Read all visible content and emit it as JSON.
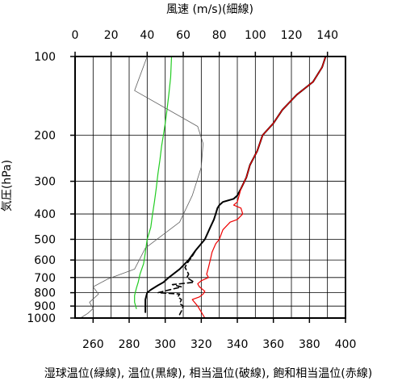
{
  "chart_data": {
    "type": "line",
    "top_axis": {
      "title": "風速 (m/s)(細線)",
      "range": [
        0,
        150
      ],
      "ticks": [
        0,
        20,
        40,
        60,
        80,
        100,
        120,
        140
      ]
    },
    "bottom_axis": {
      "title": "湿球温位(緑線), 温位(黒線), 相当温位(破線), 飽和相当温位(赤線)",
      "range": [
        250,
        400
      ],
      "ticks": [
        260,
        280,
        300,
        320,
        340,
        360,
        380,
        400
      ]
    },
    "y_axis": {
      "title": "気圧(hPa)",
      "scale": "log",
      "inverted": true,
      "range": [
        100,
        1000
      ],
      "ticks": [
        100,
        200,
        300,
        400,
        500,
        600,
        700,
        800,
        900,
        1000
      ]
    },
    "grid": true,
    "series": [
      {
        "key": "wind_speed",
        "axis": "top",
        "color": "#606060",
        "width": 0.8,
        "dash": "",
        "x": [
          40,
          33,
          68,
          71,
          70,
          65,
          58,
          39,
          33,
          18,
          10,
          13,
          8,
          10,
          7,
          3
        ],
        "y": [
          100,
          135,
          185,
          215,
          265,
          340,
          430,
          540,
          650,
          710,
          760,
          810,
          870,
          920,
          960,
          1000
        ]
      },
      {
        "key": "wet_bulb_potential_temperature",
        "axis": "bottom",
        "color": "#22cc22",
        "width": 1.2,
        "dash": "",
        "x": [
          303.5,
          303,
          302,
          301,
          300,
          299,
          298,
          297,
          296,
          295,
          294,
          293,
          292,
          290,
          289,
          288,
          286,
          285,
          284,
          283,
          283,
          284
        ],
        "y": [
          100,
          120,
          140,
          160,
          180,
          200,
          220,
          250,
          280,
          320,
          360,
          400,
          450,
          500,
          560,
          620,
          680,
          730,
          770,
          820,
          870,
          920
        ]
      },
      {
        "key": "potential_temperature",
        "axis": "bottom",
        "color": "#000000",
        "width": 2.0,
        "dash": "",
        "x": [
          389,
          387,
          382,
          373,
          365,
          360,
          354,
          351,
          347,
          345,
          342,
          340,
          338,
          332,
          330,
          329,
          328,
          327,
          325,
          322,
          317,
          313,
          308,
          302,
          299,
          296,
          292,
          290,
          289,
          289
        ],
        "y": [
          100,
          110,
          125,
          140,
          160,
          180,
          200,
          230,
          260,
          290,
          320,
          340,
          350,
          360,
          370,
          380,
          400,
          420,
          450,
          500,
          550,
          600,
          650,
          700,
          730,
          750,
          780,
          800,
          850,
          950
        ]
      },
      {
        "key": "equivalent_potential_temperature",
        "axis": "bottom",
        "color": "#000000",
        "width": 1.6,
        "dash": "6,4",
        "x": [
          389,
          387,
          382,
          373,
          365,
          360,
          354,
          351,
          347,
          345,
          342,
          340,
          338,
          332,
          330,
          329,
          328,
          327,
          325,
          322,
          317,
          315,
          312,
          311,
          313,
          312,
          316,
          304,
          309,
          296,
          308,
          307,
          309,
          308,
          310,
          309,
          308
        ],
        "y": [
          100,
          110,
          125,
          140,
          160,
          180,
          200,
          230,
          260,
          290,
          320,
          340,
          350,
          360,
          370,
          380,
          400,
          420,
          450,
          500,
          550,
          580,
          620,
          640,
          680,
          700,
          730,
          745,
          760,
          800,
          810,
          830,
          850,
          880,
          900,
          940,
          970
        ]
      },
      {
        "key": "saturated_equivalent_potential_temperature",
        "axis": "bottom",
        "color": "#ee0000",
        "width": 1.2,
        "dash": "",
        "x": [
          389,
          387,
          382,
          373,
          365,
          360,
          354,
          351,
          347,
          345,
          342,
          341,
          340,
          338,
          342,
          343,
          340,
          336,
          332,
          330,
          328,
          326,
          325,
          324,
          323,
          324,
          320,
          318,
          319,
          320,
          322,
          321,
          319,
          315,
          318,
          322
        ],
        "y": [
          100,
          110,
          125,
          140,
          160,
          180,
          200,
          230,
          260,
          290,
          320,
          340,
          360,
          370,
          380,
          400,
          420,
          430,
          460,
          500,
          520,
          560,
          600,
          640,
          680,
          700,
          720,
          740,
          760,
          770,
          790,
          810,
          830,
          850,
          900,
          1000
        ]
      }
    ]
  }
}
